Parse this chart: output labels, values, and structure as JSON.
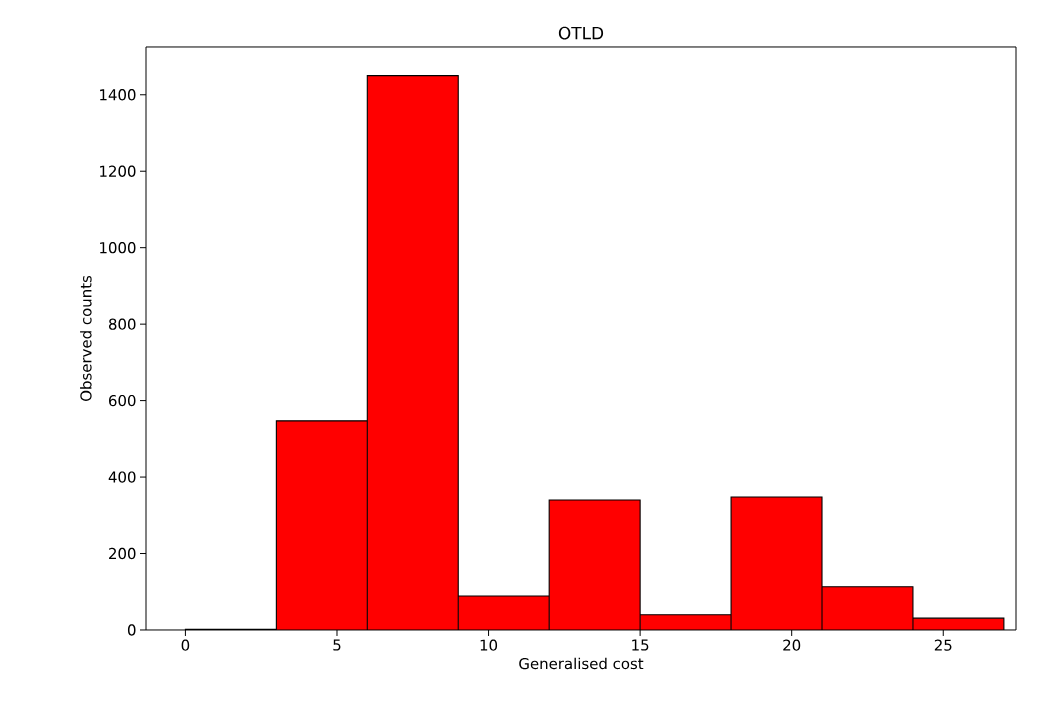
{
  "chart_data": {
    "type": "histogram",
    "title": "OTLD",
    "xlabel": "Generalised cost",
    "ylabel": "Observed counts",
    "bins": [
      0,
      3,
      6,
      9,
      12,
      15,
      18,
      21,
      24,
      27
    ],
    "values": [
      2,
      547,
      1450,
      89,
      340,
      40,
      348,
      113,
      31
    ],
    "color": "#ff0000",
    "xlim": [
      -1.3,
      27.4
    ],
    "ylim": [
      0,
      1525
    ],
    "xticks": [
      0,
      5,
      10,
      15,
      20,
      25
    ],
    "yticks": [
      0,
      200,
      400,
      600,
      800,
      1000,
      1200,
      1400
    ]
  }
}
